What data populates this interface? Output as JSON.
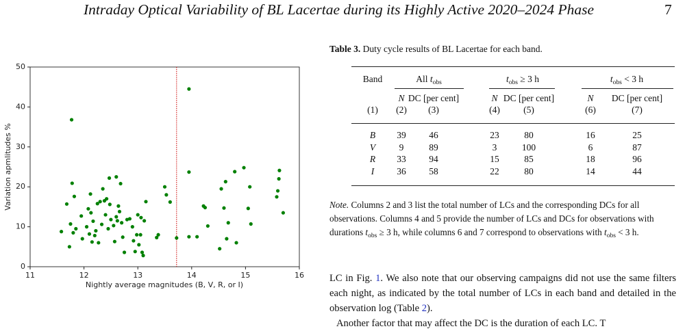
{
  "header": {
    "title": "Intraday Optical Variability of BL Lacertae during its Highly Active 2020–2024 Phase",
    "page": "7"
  },
  "chart_data": {
    "type": "scatter",
    "xlabel": "Nightly average magnitudes (B, V, R, or I)",
    "ylabel": "Variation apmlitudes %",
    "xlim": [
      11,
      16
    ],
    "ylim": [
      0,
      50
    ],
    "xticks": [
      11,
      12,
      13,
      14,
      15,
      16
    ],
    "yticks": [
      0,
      10,
      20,
      30,
      40,
      50
    ],
    "color": "#008000",
    "vline": 13.72,
    "vline_color": "#cc0000",
    "x": [
      11.58,
      11.68,
      11.73,
      11.75,
      11.77,
      11.78,
      11.8,
      11.82,
      11.85,
      11.95,
      11.97,
      12.05,
      12.08,
      12.1,
      12.12,
      12.13,
      12.15,
      12.17,
      12.2,
      12.22,
      12.25,
      12.27,
      12.3,
      12.33,
      12.35,
      12.38,
      12.4,
      12.42,
      12.45,
      12.47,
      12.48,
      12.5,
      12.55,
      12.57,
      12.6,
      12.6,
      12.62,
      12.64,
      12.66,
      12.68,
      12.7,
      12.72,
      12.75,
      12.8,
      12.85,
      12.9,
      12.92,
      12.95,
      12.98,
      13.0,
      13.02,
      13.05,
      13.06,
      13.08,
      13.1,
      13.12,
      13.15,
      13.35,
      13.38,
      13.5,
      13.53,
      13.6,
      13.72,
      13.95,
      13.95,
      13.95,
      14.1,
      14.22,
      14.25,
      14.3,
      14.52,
      14.55,
      14.6,
      14.63,
      14.65,
      14.68,
      14.8,
      14.83,
      14.97,
      15.05,
      15.08,
      15.1,
      15.58,
      15.6,
      15.62,
      15.63,
      15.7
    ],
    "values": [
      8.8,
      15.7,
      5.0,
      10.7,
      36.8,
      20.9,
      8.5,
      17.6,
      9.5,
      12.7,
      7.0,
      10.0,
      14.5,
      8.2,
      18.2,
      13.5,
      6.2,
      11.4,
      7.8,
      9.0,
      15.8,
      6.0,
      16.3,
      10.6,
      19.5,
      16.5,
      13.0,
      17.0,
      9.5,
      22.2,
      15.6,
      11.8,
      10.3,
      6.3,
      22.5,
      12.5,
      11.5,
      15.2,
      13.8,
      20.8,
      11.0,
      7.4,
      3.6,
      11.8,
      12.0,
      10.0,
      6.5,
      3.8,
      8.0,
      13.0,
      5.5,
      8.0,
      12.3,
      3.6,
      2.8,
      11.5,
      16.3,
      7.3,
      8.0,
      20.0,
      18.0,
      16.2,
      7.2,
      44.5,
      23.7,
      7.5,
      7.5,
      15.2,
      14.8,
      10.2,
      4.5,
      19.5,
      14.7,
      21.3,
      7.0,
      11.0,
      23.8,
      6.0,
      24.8,
      14.6,
      20.0,
      10.7,
      17.5,
      19.0,
      22.0,
      24.1,
      13.5
    ]
  },
  "table": {
    "label": "Table 3.",
    "caption": "Duty cycle results of BL Lacertae for each band.",
    "groups": [
      {
        "text": "Band"
      },
      {
        "pre": "All ",
        "var": "t",
        "sub": "obs"
      },
      {
        "var": "t",
        "sub": "obs",
        "post": " ≥ 3 h"
      },
      {
        "var": "t",
        "sub": "obs",
        "post": " < 3 h"
      }
    ],
    "subheader": [
      "N",
      "DC [per cent]",
      "N",
      "DC [per cent]",
      "N",
      "DC [per cent]"
    ],
    "numbers": [
      "(1)",
      "(2)",
      "(3)",
      "(4)",
      "(5)",
      "(6)",
      "(7)"
    ],
    "rows": [
      [
        "B",
        39,
        46,
        23,
        80,
        16,
        25
      ],
      [
        "V",
        9,
        89,
        3,
        100,
        6,
        87
      ],
      [
        "R",
        33,
        94,
        15,
        85,
        18,
        96
      ],
      [
        "I",
        36,
        58,
        22,
        80,
        14,
        44
      ]
    ]
  },
  "note": {
    "label": "Note.",
    "parts": [
      " Columns 2 and 3 list the total number of LCs and the corresponding DCs for all observations. Columns 4 and 5 provide the number of LCs and DCs for observations with durations ",
      "t",
      "obs",
      " ≥ 3 h, while columns 6 and 7 correspond to observations with ",
      "t",
      "obs",
      " < 3 h."
    ]
  },
  "body": {
    "parts": [
      "LC in Fig. ",
      "1",
      ". We also note that our observing campaigns did not use the same filters each night, as indicated by the total number of LCs in each band and detailed in the observation log (Table ",
      "2",
      ")."
    ],
    "next": "Another factor that may affect the DC is the duration of each LC. T"
  }
}
